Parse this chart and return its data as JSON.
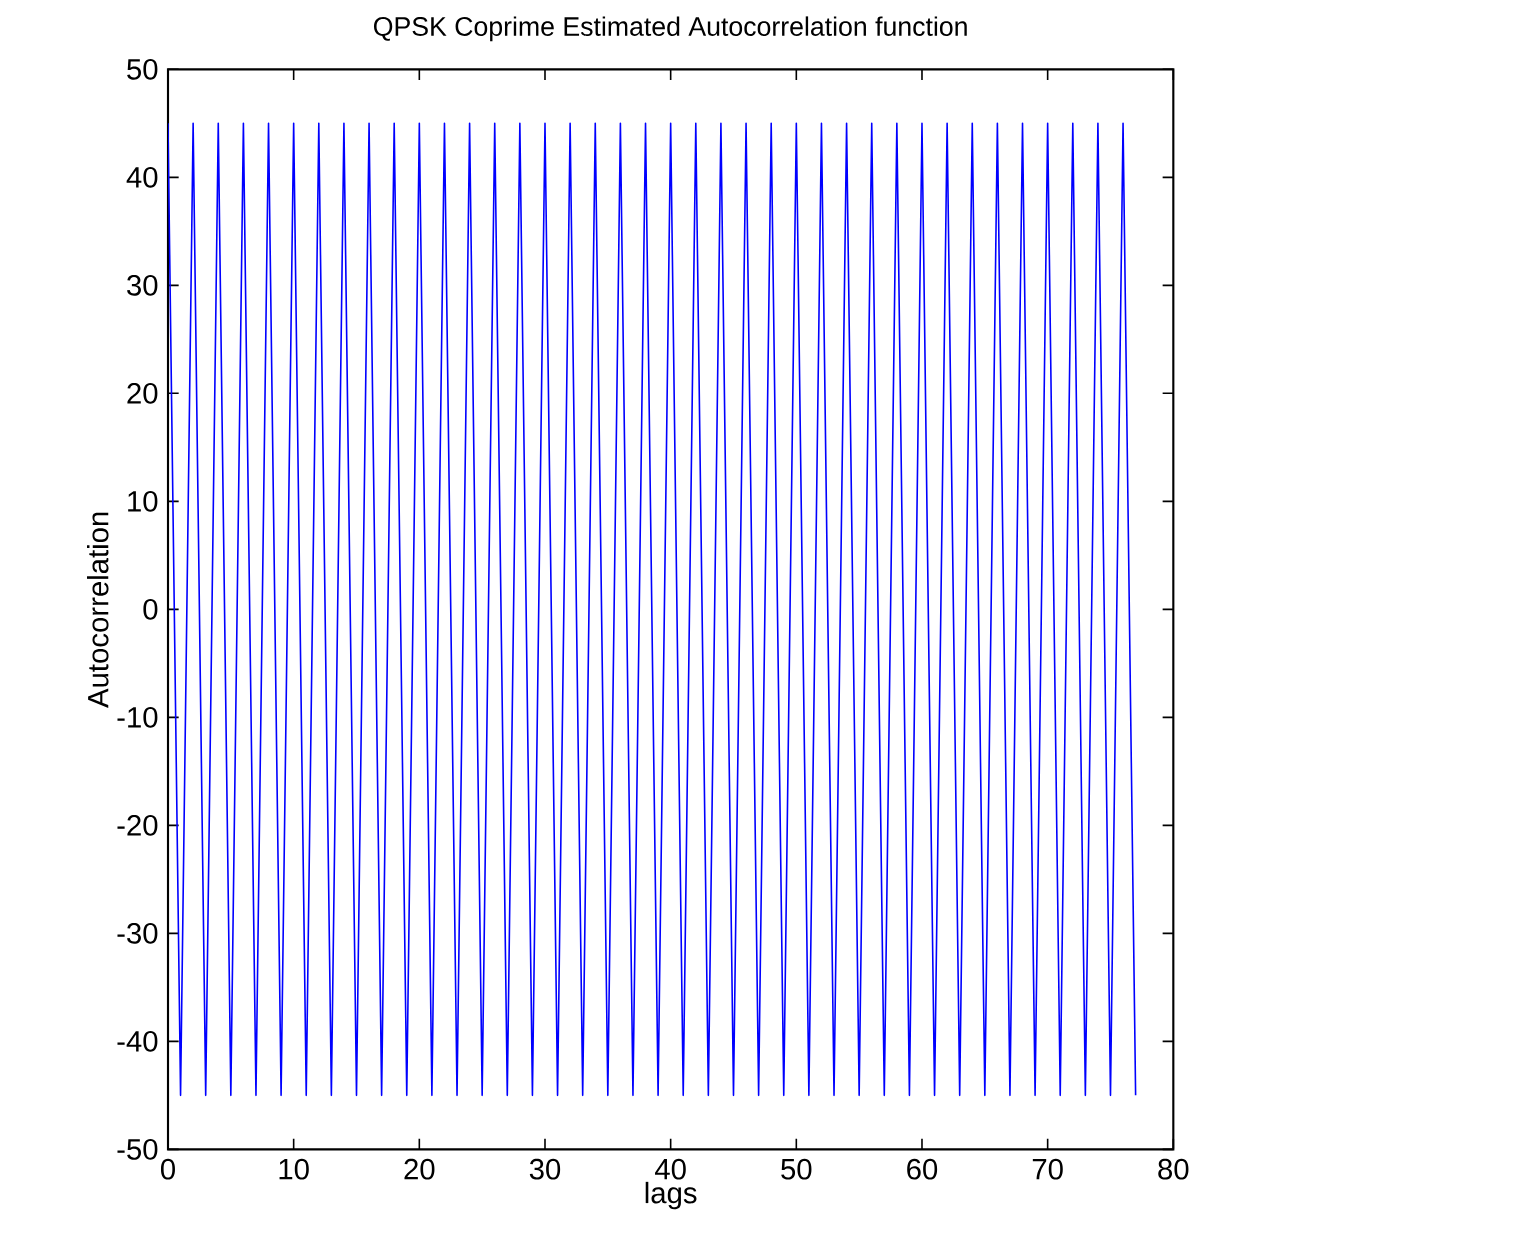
{
  "chart_data": {
    "type": "line",
    "title": "QPSK Coprime Estimated Autocorrelation function",
    "xlabel": "lags",
    "ylabel": "Autocorrelation",
    "x": [
      0,
      1,
      2,
      3,
      4,
      5,
      6,
      7,
      8,
      9,
      10,
      11,
      12,
      13,
      14,
      15,
      16,
      17,
      18,
      19,
      20,
      21,
      22,
      23,
      24,
      25,
      26,
      27,
      28,
      29,
      30,
      31,
      32,
      33,
      34,
      35,
      36,
      37,
      38,
      39,
      40,
      41,
      42,
      43,
      44,
      45,
      46,
      47,
      48,
      49,
      50,
      51,
      52,
      53,
      54,
      55,
      56,
      57,
      58,
      59,
      60,
      61,
      62,
      63,
      64,
      65,
      66,
      67,
      68,
      69,
      70,
      71,
      72,
      73,
      74,
      75,
      76,
      77
    ],
    "series": [
      {
        "color": "#0000ff",
        "values": [
          45,
          -45,
          45,
          -45,
          45,
          -45,
          45,
          -45,
          45,
          -45,
          45,
          -45,
          45,
          -45,
          45,
          -45,
          45,
          -45,
          45,
          -45,
          45,
          -45,
          45,
          -45,
          45,
          -45,
          45,
          -45,
          45,
          -45,
          45,
          -45,
          45,
          -45,
          45,
          -45,
          45,
          -45,
          45,
          -45,
          45,
          -45,
          45,
          -45,
          45,
          -45,
          45,
          -45,
          45,
          -45,
          45,
          -45,
          45,
          -45,
          45,
          -45,
          45,
          -45,
          45,
          -45,
          45,
          -45,
          45,
          -45,
          45,
          -45,
          45,
          -45,
          45,
          -45,
          45,
          -45,
          45,
          -45,
          45,
          -45,
          45,
          -45
        ]
      }
    ],
    "xlim": [
      0,
      80
    ],
    "ylim": [
      -50,
      50
    ],
    "xticks": [
      0,
      10,
      20,
      30,
      40,
      50,
      60,
      70,
      80
    ],
    "yticks": [
      -50,
      -40,
      -30,
      -20,
      -10,
      0,
      10,
      20,
      30,
      40,
      50
    ],
    "grid": false,
    "marker": "none",
    "line_style": "solid"
  }
}
